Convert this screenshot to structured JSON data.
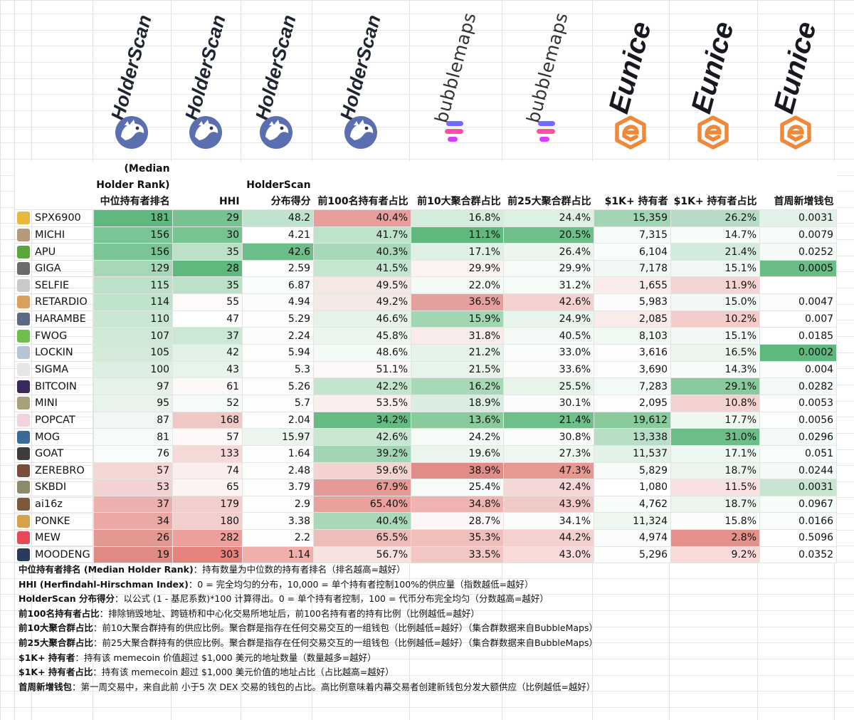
{
  "columns": [
    {
      "brand": "HolderScan",
      "header_lines": [
        "(Median",
        "Holder Rank)",
        "中位持有者排名"
      ]
    },
    {
      "brand": "HolderScan",
      "header_lines": [
        "",
        "",
        "HHI"
      ]
    },
    {
      "brand": "HolderScan",
      "header_lines": [
        "",
        "HolderScan",
        "分布得分"
      ]
    },
    {
      "brand": "HolderScan",
      "header_lines": [
        "",
        "",
        "前100名持有者占比"
      ]
    },
    {
      "brand": "bubblemaps",
      "header_lines": [
        "",
        "",
        "前10大聚合群占比"
      ]
    },
    {
      "brand": "bubblemaps",
      "header_lines": [
        "",
        "",
        "前25大聚合群占比"
      ]
    },
    {
      "brand": "Eunice",
      "header_lines": [
        "",
        "",
        "$1K+ 持有者"
      ]
    },
    {
      "brand": "Eunice",
      "header_lines": [
        "",
        "",
        "$1K+ 持有者占比"
      ]
    },
    {
      "brand": "Eunice",
      "header_lines": [
        "",
        "",
        "首周新增钱包"
      ]
    }
  ],
  "rows": [
    {
      "name": "SPX6900",
      "icon": "spx6900-icon",
      "color": "#e7b93a",
      "values": [
        "181",
        "29",
        "48.2",
        "40.4%",
        "16.8%",
        "24.4%",
        "15,359",
        "26.2%",
        "0.0031"
      ]
    },
    {
      "name": "MICHI",
      "icon": "michi-icon",
      "color": "#b49a78",
      "values": [
        "156",
        "30",
        "4.21",
        "41.7%",
        "11.1%",
        "20.5%",
        "7,315",
        "14.7%",
        "0.0079"
      ]
    },
    {
      "name": "APU",
      "icon": "apu-icon",
      "color": "#5aa53c",
      "values": [
        "156",
        "35",
        "42.6",
        "40.3%",
        "17.1%",
        "26.4%",
        "6,104",
        "21.4%",
        "0.0252"
      ]
    },
    {
      "name": "GIGA",
      "icon": "giga-icon",
      "color": "#6b6b6b",
      "values": [
        "129",
        "28",
        "2.59",
        "41.5%",
        "29.9%",
        "29.9%",
        "7,178",
        "15.1%",
        "0.0005"
      ]
    },
    {
      "name": "SELFIE",
      "icon": "selfie-icon",
      "color": "#c9c9c9",
      "values": [
        "115",
        "35",
        "6.87",
        "49.5%",
        "22.0%",
        "31.2%",
        "1,655",
        "11.9%",
        ""
      ]
    },
    {
      "name": "RETARDIO",
      "icon": "retardio-icon",
      "color": "#d9a05b",
      "values": [
        "114",
        "55",
        "4.94",
        "49.2%",
        "36.5%",
        "42.6%",
        "5,983",
        "15.0%",
        "0.0047"
      ]
    },
    {
      "name": "HARAMBE",
      "icon": "harambe-icon",
      "color": "#5b6a80",
      "values": [
        "110",
        "47",
        "5.29",
        "46.6%",
        "15.9%",
        "24.9%",
        "2,085",
        "10.2%",
        "0.007"
      ]
    },
    {
      "name": "FWOG",
      "icon": "fwog-icon",
      "color": "#6fbf4a",
      "values": [
        "107",
        "37",
        "2.24",
        "45.8%",
        "31.8%",
        "40.5%",
        "8,103",
        "15.1%",
        "0.0185"
      ]
    },
    {
      "name": "LOCKIN",
      "icon": "lockin-icon",
      "color": "#b8c4d6",
      "values": [
        "105",
        "42",
        "5.94",
        "48.6%",
        "21.2%",
        "33.0%",
        "3,616",
        "16.5%",
        "0.0002"
      ]
    },
    {
      "name": "SIGMA",
      "icon": "sigma-icon",
      "color": "#e6e6e6",
      "values": [
        "100",
        "43",
        "5.3",
        "51.1%",
        "21.5%",
        "33.6%",
        "3,690",
        "14.3%",
        "0.004"
      ]
    },
    {
      "name": "BITCOIN",
      "icon": "bitcoin-icon",
      "color": "#3a2a5c",
      "values": [
        "97",
        "61",
        "5.26",
        "42.2%",
        "16.2%",
        "25.5%",
        "7,283",
        "29.1%",
        "0.0282"
      ]
    },
    {
      "name": "MINI",
      "icon": "mini-icon",
      "color": "#a8a07a",
      "values": [
        "95",
        "52",
        "5.7",
        "53.5%",
        "18.9%",
        "30.1%",
        "2,095",
        "10.8%",
        "0.0053"
      ]
    },
    {
      "name": "POPCAT",
      "icon": "popcat-icon",
      "color": "#f1d3dc",
      "values": [
        "87",
        "168",
        "2.04",
        "34.2%",
        "13.6%",
        "21.4%",
        "19,612",
        "17.7%",
        "0.0056"
      ]
    },
    {
      "name": "MOG",
      "icon": "mog-icon",
      "color": "#3a6a9a",
      "values": [
        "81",
        "57",
        "15.97",
        "42.6%",
        "24.2%",
        "30.8%",
        "13,338",
        "31.0%",
        "0.0296"
      ]
    },
    {
      "name": "GOAT",
      "icon": "goat-icon",
      "color": "#3d3d3d",
      "values": [
        "76",
        "133",
        "1.64",
        "39.2%",
        "19.6%",
        "27.3%",
        "11,537",
        "17.1%",
        "0.051"
      ]
    },
    {
      "name": "ZEREBRO",
      "icon": "zerebro-icon",
      "color": "#7a4d3a",
      "values": [
        "57",
        "74",
        "2.48",
        "59.6%",
        "38.9%",
        "47.3%",
        "5,829",
        "18.7%",
        "0.0244"
      ]
    },
    {
      "name": "SKBDI",
      "icon": "skbdi-icon",
      "color": "#8b8b6b",
      "values": [
        "53",
        "65",
        "3.79",
        "67.9%",
        "25.4%",
        "42.4%",
        "1,080",
        "11.5%",
        "0.0031"
      ]
    },
    {
      "name": "ai16z",
      "icon": "ai16z-icon",
      "color": "#7a5a3a",
      "values": [
        "37",
        "179",
        "2.9",
        "65.40%",
        "34.8%",
        "43.9%",
        "4,762",
        "18.7%",
        "0.0967"
      ]
    },
    {
      "name": "PONKE",
      "icon": "ponke-icon",
      "color": "#d4a24a",
      "values": [
        "34",
        "180",
        "3.38",
        "40.4%",
        "28.7%",
        "34.1%",
        "11,324",
        "15.8%",
        "0.0166"
      ]
    },
    {
      "name": "MEW",
      "icon": "mew-icon",
      "color": "#e64a5a",
      "values": [
        "26",
        "282",
        "2.2",
        "65.5%",
        "35.3%",
        "44.2%",
        "4,974",
        "2.8%",
        "0.5096"
      ]
    },
    {
      "name": "MOODENG",
      "icon": "moodeng-icon",
      "color": "#2a3a5a",
      "values": [
        "19",
        "303",
        "1.14",
        "56.7%",
        "33.5%",
        "43.0%",
        "5,296",
        "9.2%",
        "0.0352"
      ]
    }
  ],
  "colors": [
    [
      "#5fb87d",
      "#78c292",
      "#c0e3cc",
      "#e89e9a",
      "#d4ecdc",
      "#ddf0e4",
      "#a2d5b3",
      "#b6ddc4",
      "#e3f2e9"
    ],
    [
      "#7ac495",
      "#77c392",
      "#ffffff",
      "#bfe3ca",
      "#5fb87d",
      "#6ebf8a",
      "#f5fbf7",
      "#f7fcf9",
      "#f7fcf9"
    ],
    [
      "#7ac495",
      "#bde1c8",
      "#6dbd88",
      "#a7d8b7",
      "#dff1e5",
      "#ecf6ef",
      "#fbfdfc",
      "#d3ebdc",
      "#f4fbf7"
    ],
    [
      "#a7d7b6",
      "#5fb87d",
      "#fdfefd",
      "#c4e6ce",
      "#fbf3f2",
      "#f6fbf8",
      "#f2f9f4",
      "#f2f9f4",
      "#6bbd87"
    ],
    [
      "#bce1c8",
      "#bde1c8",
      "#f9fdfa",
      "#f4e7e4",
      "#f3faf5",
      "#f5fbf7",
      "#f9ecea",
      "#f4d4d2",
      "#ffffff"
    ],
    [
      "#bfe2cb",
      "#fdfaf9",
      "#fbfdfc",
      "#f5e9e6",
      "#e4a09c",
      "#f3d2cf",
      "#fbfdfc",
      "#f2f9f4",
      "#f9fcfa"
    ],
    [
      "#c8e6d1",
      "#ffffff",
      "#fdfefd",
      "#e5f3e9",
      "#a2d6b3",
      "#e8f5ec",
      "#f8ebe9",
      "#f5ccca",
      "#fefffe"
    ],
    [
      "#cfe9d6",
      "#cbe8d4",
      "#fbfdfb",
      "#ecf6ef",
      "#f8ebe9",
      "#f3faf5",
      "#f0f8f2",
      "#f2f9f4",
      "#ffffff"
    ],
    [
      "#d3ead9",
      "#e2f2e7",
      "#fcfefc",
      "#f4fbf6",
      "#e5f3e9",
      "#fafdfb",
      "#fefefe",
      "#ecf6ef",
      "#5fb87d"
    ],
    [
      "#dcefe2",
      "#e6f4ea",
      "#fcfefd",
      "#fdf8f7",
      "#e7f4eb",
      "#fbfdfb",
      "#fefefe",
      "#f8fcf9",
      "#fbfdfc"
    ],
    [
      "#e4f2e8",
      "#fdf8f8",
      "#fcfefd",
      "#c4e5cd",
      "#a7d9b8",
      "#e6f4ea",
      "#f3faf5",
      "#88c99e",
      "#f3faf6"
    ],
    [
      "#e8f4eb",
      "#f6fbf8",
      "#fcfefd",
      "#faefed",
      "#d9eee0",
      "#f9fcfa",
      "#fefefe",
      "#f4d2cf",
      "#fcfefd"
    ],
    [
      "#f1f8f3",
      "#f0c8c5",
      "#fdfefd",
      "#65bb82",
      "#8acb9e",
      "#6ebf8a",
      "#8acb9e",
      "#eef7f1",
      "#fcfefd"
    ],
    [
      "#f5fbf7",
      "#fdf9f8",
      "#ebf5ee",
      "#c8e6d0",
      "#f6fbf8",
      "#fbfdfb",
      "#b8dfc6",
      "#6dbd88",
      "#f4fbf6"
    ],
    [
      "#f9fdfa",
      "#f4d9d7",
      "#fdfefd",
      "#a2d5b3",
      "#eaf5ee",
      "#eef8f1",
      "#e2f2e7",
      "#eef8f2",
      "#f8fcfa"
    ],
    [
      "#f5d7d5",
      "#fbefee",
      "#fcfefc",
      "#f3d3d0",
      "#e08c88",
      "#e79893",
      "#f8fcf9",
      "#eaf5ee",
      "#f4fbf7"
    ],
    [
      "#f3d3d1",
      "#fcf4f3",
      "#fcfefc",
      "#e59a96",
      "#f6fbf8",
      "#f5d8d5",
      "#ffffff",
      "#f8e2e1",
      "#c7e5cf"
    ],
    [
      "#ecb1ae",
      "#f2cfcd",
      "#fcfefc",
      "#e8a19d",
      "#eeb4b1",
      "#f1c9c6",
      "#f7fcf8",
      "#eaf5ee",
      "#f6fcf8"
    ],
    [
      "#eaa9a5",
      "#f2cecc",
      "#fcfefc",
      "#a7d8b8",
      "#fcf7f6",
      "#fbfdfb",
      "#eef8f1",
      "#fbfdfb",
      "#f8fcfa"
    ],
    [
      "#e49892",
      "#ec9f9b",
      "#fcfefc",
      "#efbdb9",
      "#f0bfbc",
      "#f4d1cf",
      "#f9fcfa",
      "#e4918c",
      "#ffffff"
    ],
    [
      "#e08a84",
      "#e5837d",
      "#efb0ab",
      "#f7e2e0",
      "#f1c6c3",
      "#f6dbd9",
      "#fcfefc",
      "#f8dad8",
      "#fdfefd"
    ]
  ],
  "legend": [
    {
      "term": "中位持有者排名 (Median Holder Rank)",
      "text": "：持有数量为中位数的持有者排名（排名越高=越好）"
    },
    {
      "term": "HHI (Herfindahl-Hirschman Index)",
      "text": "：0 = 完全均匀的分布，10,000 = 单个持有者控制100%的供应量（指数越低=越好）"
    },
    {
      "term": "HolderScan 分布得分",
      "text": "：以公式 (1 - 基尼系数)*100 计算得出。0 = 单个持有者控制，100 = 代币分布完全均匀（分数越高=越好）"
    },
    {
      "term": "前100名持有者占比",
      "text": "：排除销毁地址、跨链桥和中心化交易所地址后，前100名持有者的持有比例（比例越低=越好）"
    },
    {
      "term": "前10大聚合群占比",
      "text": "：前10大聚合群持有的供应比例。聚合群是指存在任何交易交互的一组钱包（比例越低=越好）（集合群数据来自BubbleMaps）"
    },
    {
      "term": "前25大聚合群占比",
      "text": "：前25大聚合群持有的供应比例。聚合群是指存在任何交易交互的一组钱包（比例越低=越好）（集合群数据来自BubbleMaps）"
    },
    {
      "term": "$1K+ 持有者",
      "text": "：持有该 memecoin 价值超过 $1,000 美元的地址数量（数量越多=越好）"
    },
    {
      "term": "$1K+ 持有者占比",
      "text": "：持有该 memecoin 超过 $1,000 美元价值的地址占比（占比越高=越好）"
    },
    {
      "term": "首周新增钱包",
      "text": "：第一周交易中，来自此前 小于5 次 DEX 交易的钱包的占比。高比例意味着内幕交易者创建新钱包分发大额供应（比例越低=越好）"
    }
  ]
}
